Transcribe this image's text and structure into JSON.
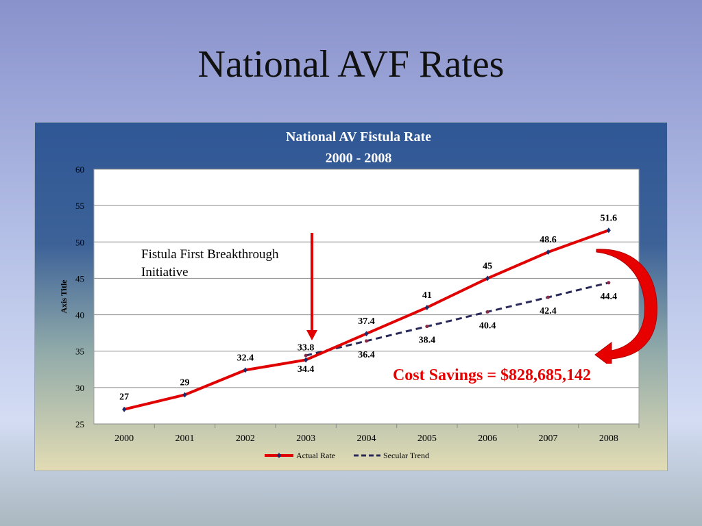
{
  "slide": {
    "title": "National AVF Rates"
  },
  "annotations": {
    "initiative": "Fistula First Breakthrough Initiative",
    "cost_savings": "Cost Savings = $828,685,142"
  },
  "chart_data": {
    "type": "line",
    "title": "National AV Fistula Rate",
    "subtitle": "2000 - 2008",
    "xlabel": "",
    "ylabel": "Axis Title",
    "categories": [
      "2000",
      "2001",
      "2002",
      "2003",
      "2004",
      "2005",
      "2006",
      "2007",
      "2008"
    ],
    "ylim": [
      25,
      60
    ],
    "yticks": [
      25,
      30,
      35,
      40,
      45,
      50,
      55,
      60
    ],
    "grid": true,
    "legend": "bottom",
    "series": [
      {
        "name": "Actual Rate",
        "color": "#e00000",
        "style": "solid",
        "values": [
          27,
          29,
          32.4,
          33.8,
          37.4,
          41,
          45,
          48.6,
          51.6
        ],
        "labels": [
          "27",
          "29",
          "32.4",
          "33.8",
          "37.4",
          "41",
          "45",
          "48.6",
          "51.6"
        ]
      },
      {
        "name": "Secular Trend",
        "color": "#2a2a5a",
        "style": "dashed",
        "start_index": 3,
        "values": [
          null,
          null,
          null,
          34.4,
          36.4,
          38.4,
          40.4,
          42.4,
          44.4
        ],
        "labels": [
          null,
          null,
          null,
          "34.4",
          "36.4",
          "38.4",
          "40.4",
          "42.4",
          "44.4"
        ]
      }
    ]
  }
}
